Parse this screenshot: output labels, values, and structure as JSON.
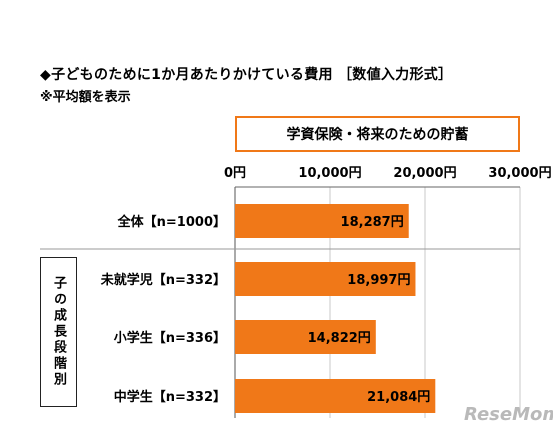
{
  "header": {
    "title": "◆子どものために1か月あたりかけている費用 ［数値入力形式］",
    "note": "※平均額を表示"
  },
  "chart_data": {
    "type": "bar",
    "orientation": "horizontal",
    "title": "学資保険・将来のための貯蓄",
    "categories": [
      "全体【n=1000】",
      "未就学児【n=332】",
      "小学生【n=336】",
      "中学生【n=332】"
    ],
    "values": [
      18287,
      18997,
      14822,
      21084
    ],
    "data_labels": [
      "18,287円",
      "18,997円",
      "14,822円",
      "21,084円"
    ],
    "x_ticks": [
      "0円",
      "10,000円",
      "20,000円",
      "30,000円"
    ],
    "x_tick_values": [
      0,
      10000,
      20000,
      30000
    ],
    "xlim": [
      0,
      30000
    ],
    "grid": true,
    "group_label": "子の成長段階別",
    "bar_color": "#f07818"
  },
  "watermark": "ReseMom"
}
